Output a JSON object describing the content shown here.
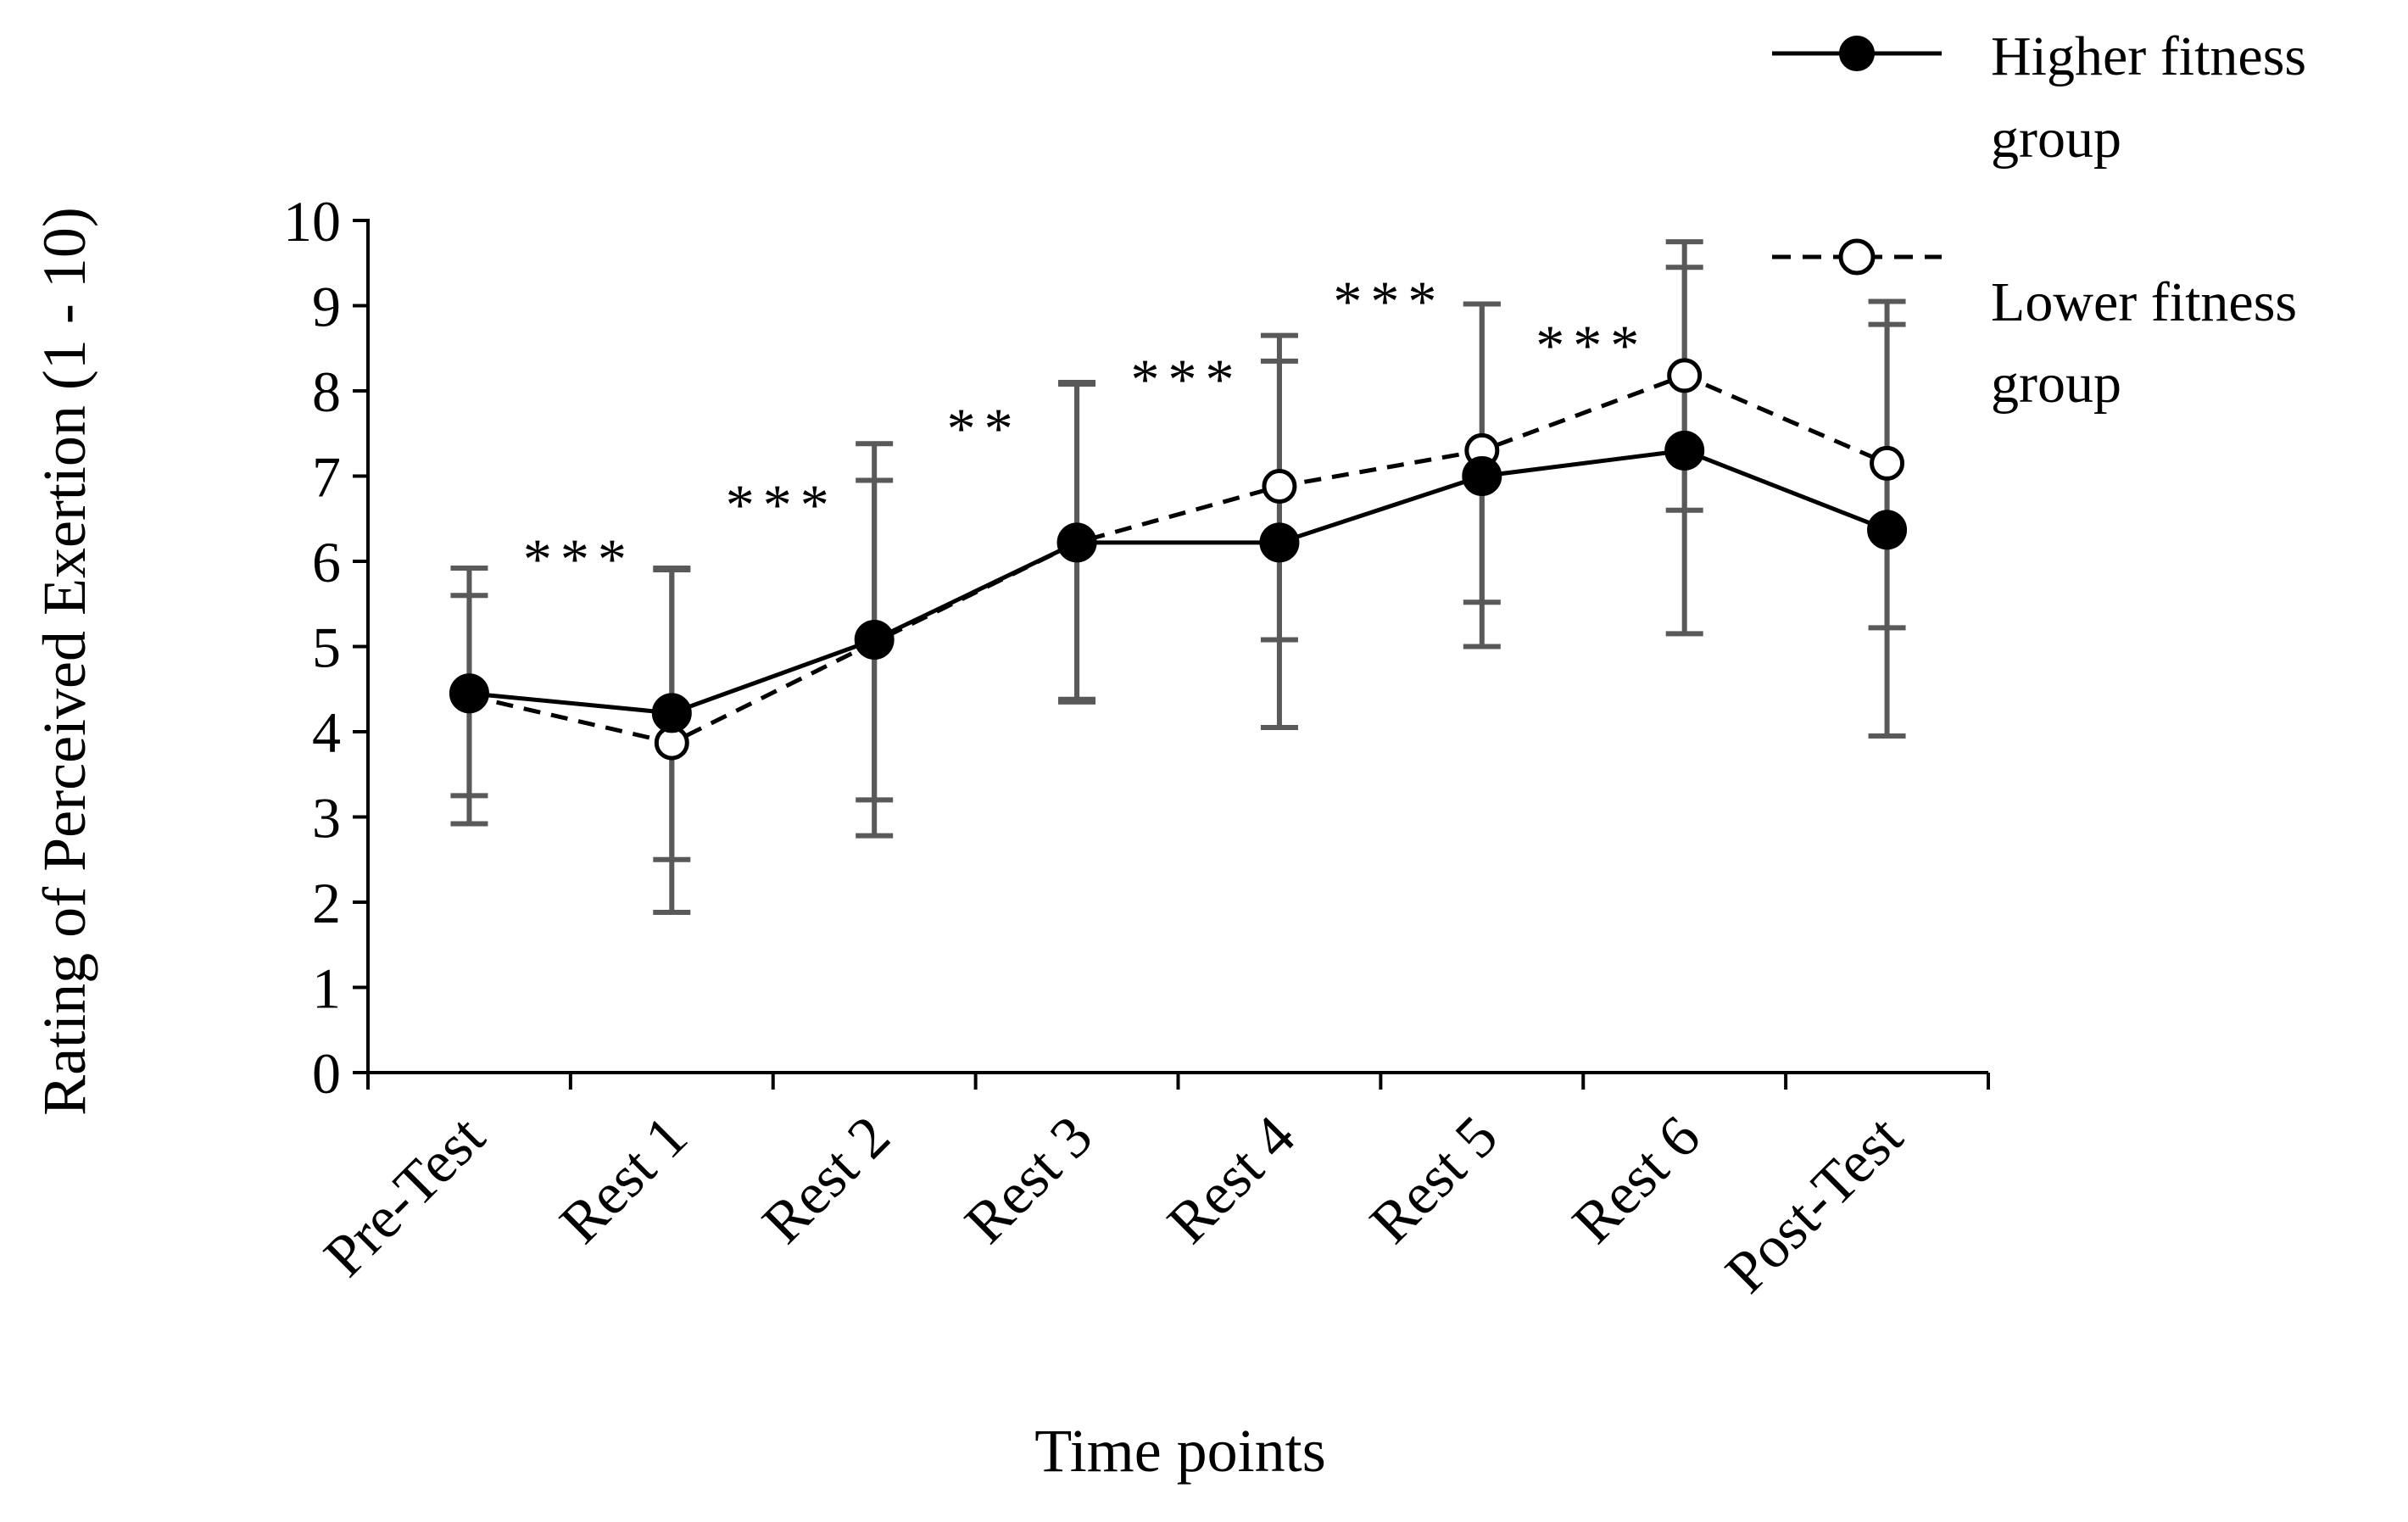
{
  "chart_data": {
    "type": "line",
    "title": "",
    "xlabel": "Time points",
    "ylabel": "Rating of Perceived Exertion (1 - 10)",
    "ylim": [
      0,
      10
    ],
    "yticks": [
      "0",
      "1",
      "2",
      "3",
      "4",
      "5",
      "6",
      "7",
      "8",
      "9",
      "10"
    ],
    "categories": [
      "Pre-Test",
      "Rest 1",
      "Rest 2",
      "Rest 3",
      "Rest 4",
      "Rest 5",
      "Rest 6",
      "Post-Test"
    ],
    "grid": false,
    "legend_position": "top-right",
    "series": [
      {
        "name": "Higher fitness group",
        "legend_line1": "Higher fitness",
        "legend_line2": "group",
        "marker": "filled-circle",
        "line_style": "solid",
        "values": [
          4.45,
          4.22,
          5.08,
          6.22,
          6.22,
          7.0,
          7.3,
          6.37
        ],
        "err_low": [
          3.25,
          2.5,
          3.2,
          4.38,
          4.05,
          5.0,
          5.15,
          3.95
        ],
        "err_high": [
          5.6,
          5.92,
          6.95,
          8.08,
          8.35,
          9.02,
          9.45,
          8.78
        ]
      },
      {
        "name": "Lower fitness group",
        "legend_line1": "Lower fitness",
        "legend_line2": "group",
        "marker": "open-circle",
        "line_style": "dashed",
        "values": [
          4.42,
          3.87,
          5.05,
          6.22,
          6.88,
          7.3,
          8.18,
          7.15
        ],
        "err_low": [
          2.92,
          1.88,
          2.78,
          4.35,
          5.08,
          5.52,
          6.6,
          5.22
        ],
        "err_high": [
          5.92,
          5.9,
          7.38,
          8.1,
          8.65,
          9.02,
          9.75,
          9.05
        ]
      }
    ],
    "significance": [
      {
        "after_index": 0,
        "label": "***"
      },
      {
        "after_index": 1,
        "label": "***"
      },
      {
        "after_index": 2,
        "label": "**"
      },
      {
        "after_index": 3,
        "label": "***"
      },
      {
        "after_index": 4,
        "label": "***"
      },
      {
        "after_index": 5,
        "label": "***"
      }
    ],
    "colors": {
      "line": "#000000",
      "error_bar": "#595959",
      "axis": "#000000"
    }
  }
}
